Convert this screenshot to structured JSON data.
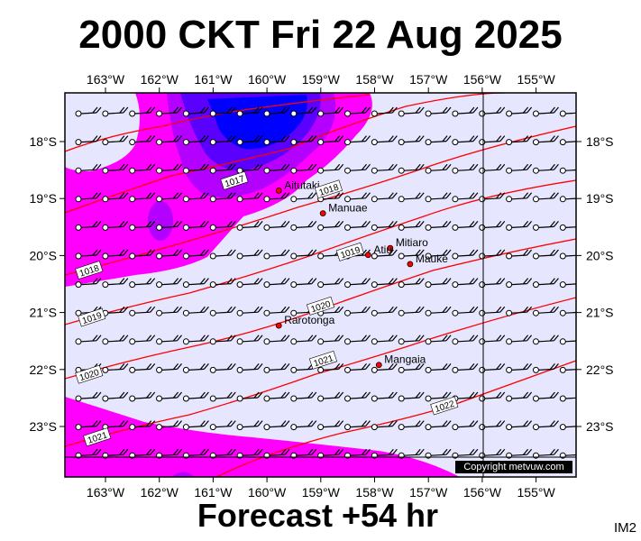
{
  "header": {
    "title": "2000 CKT Fri 22 Aug 2025"
  },
  "footer": {
    "forecast": "Forecast +54 hr",
    "code": "IM2",
    "copyright": "Copyright metvuw.com"
  },
  "colors": {
    "background": "#e6e6ff",
    "rain_light": "#ff00ff",
    "rain_mid": "#b400ff",
    "rain_heavy": "#5a00ff",
    "rain_core": "#0000ff",
    "isobar": "#ff0000",
    "town": "#ff0000"
  },
  "map": {
    "lon_labels": [
      "163°W",
      "162°W",
      "161°W",
      "160°W",
      "159°W",
      "158°W",
      "157°W",
      "156°W",
      "155°W"
    ],
    "lat_labels": [
      "18°S",
      "19°S",
      "20°S",
      "21°S",
      "22°S",
      "23°S"
    ]
  },
  "places": [
    {
      "name": "Aitutaki",
      "lon": -159.78,
      "lat": -18.86
    },
    {
      "name": "Manuae",
      "lon": -158.96,
      "lat": -19.26
    },
    {
      "name": "Mitiaro",
      "lon": -157.71,
      "lat": -19.87
    },
    {
      "name": "Atiu",
      "lon": -158.12,
      "lat": -19.99
    },
    {
      "name": "Mauke",
      "lon": -157.34,
      "lat": -20.15
    },
    {
      "name": "Rarotonga",
      "lon": -159.78,
      "lat": -21.23
    },
    {
      "name": "Mangaia",
      "lon": -157.92,
      "lat": -21.92
    }
  ],
  "isobars": [
    {
      "hpa": "1017",
      "lon": -160.6,
      "lat": -18.7
    },
    {
      "hpa": "1018",
      "lon": -158.85,
      "lat": -18.85
    },
    {
      "hpa": "1018",
      "lon": -163.3,
      "lat": -20.27
    },
    {
      "hpa": "1019",
      "lon": -158.45,
      "lat": -19.95
    },
    {
      "hpa": "1019",
      "lon": -163.25,
      "lat": -21.1
    },
    {
      "hpa": "1020",
      "lon": -159.0,
      "lat": -20.9
    },
    {
      "hpa": "1020",
      "lon": -163.3,
      "lat": -22.1
    },
    {
      "hpa": "1021",
      "lon": -158.95,
      "lat": -21.85
    },
    {
      "hpa": "1021",
      "lon": -163.15,
      "lat": -23.2
    },
    {
      "hpa": "1022",
      "lon": -156.7,
      "lat": -22.65
    }
  ]
}
